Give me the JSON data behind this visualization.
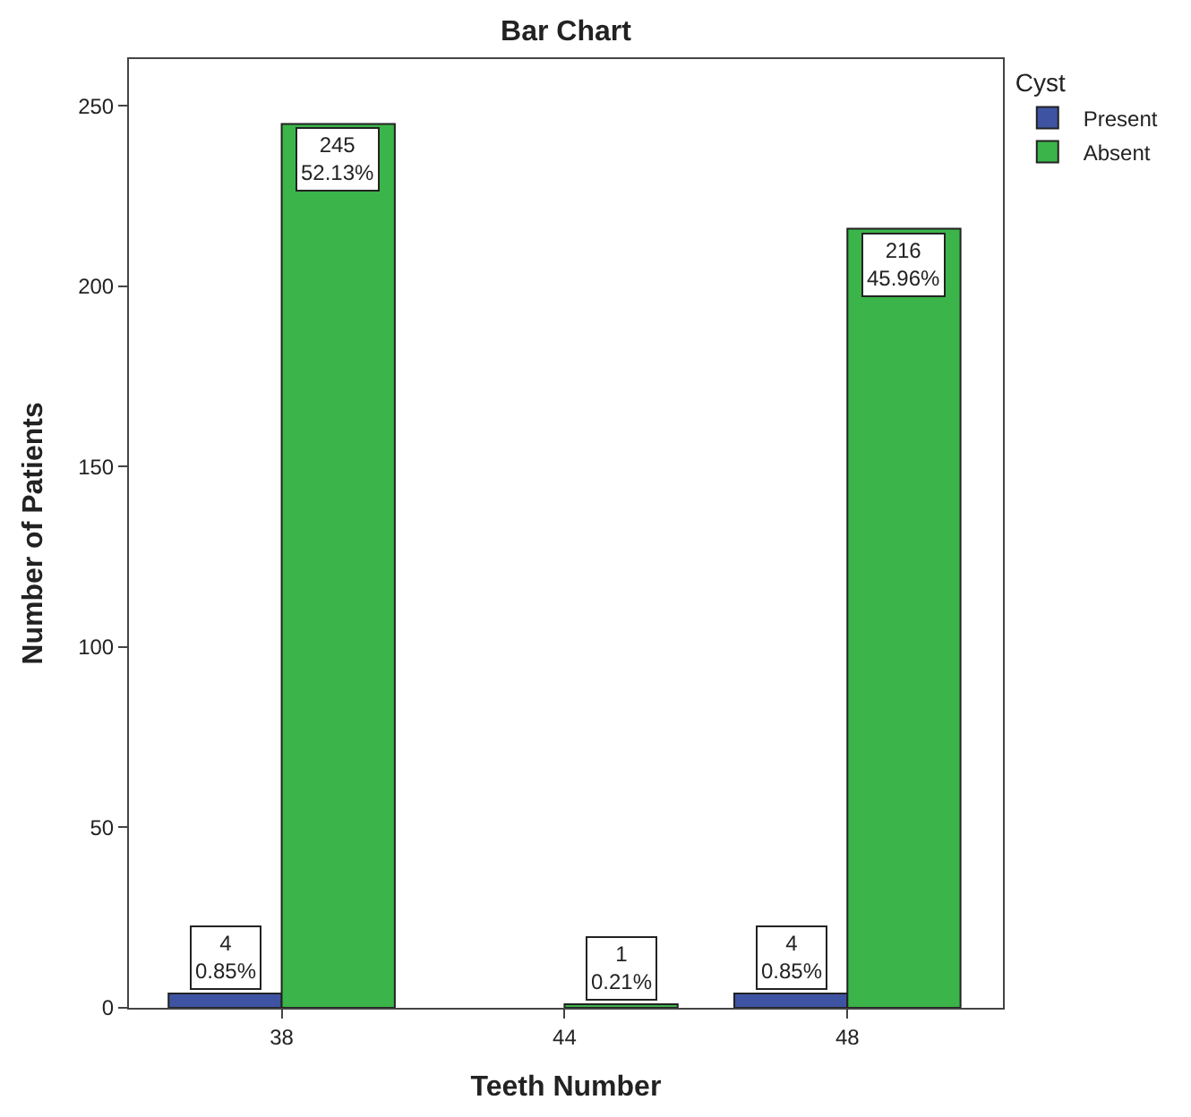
{
  "chart_data": {
    "type": "bar",
    "title": "Bar Chart",
    "xlabel": "Teeth Number",
    "ylabel": "Number of Patients",
    "legend_title": "Cyst",
    "categories": [
      "38",
      "44",
      "48"
    ],
    "series": [
      {
        "name": "Present",
        "color": "#3e54a3",
        "values": [
          4,
          null,
          4
        ],
        "value_labels": [
          "4\n0.85%",
          null,
          "4\n0.85%"
        ]
      },
      {
        "name": "Absent",
        "color": "#3bb44a",
        "values": [
          245,
          1,
          216
        ],
        "value_labels": [
          "245\n52.13%",
          "1\n0.21%",
          "216\n45.96%"
        ]
      }
    ],
    "ylim": [
      0,
      263
    ],
    "yticks": [
      0,
      50,
      100,
      150,
      200,
      250
    ],
    "legend": "top right"
  }
}
